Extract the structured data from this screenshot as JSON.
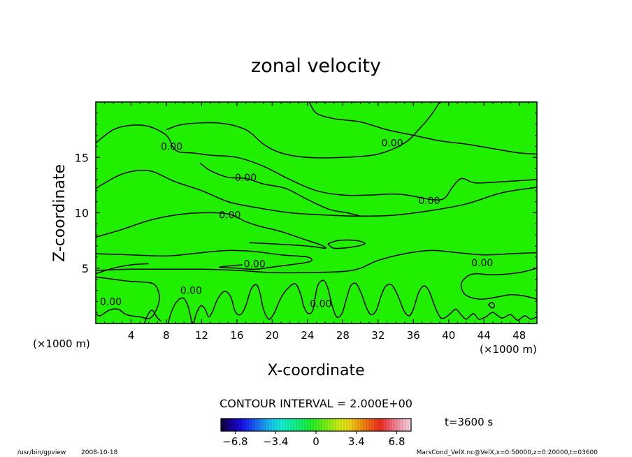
{
  "chart_data": {
    "type": "contour",
    "title": "zonal velocity",
    "xlabel": "X-coordinate",
    "ylabel": "Z-coordinate",
    "x_unit_left": "(×1000 m)",
    "x_unit_right": "(×1000 m)",
    "xlim": [
      0,
      50
    ],
    "ylim": [
      0,
      20
    ],
    "x_ticks": [
      4,
      8,
      12,
      16,
      20,
      24,
      28,
      32,
      36,
      40,
      44,
      48
    ],
    "y_ticks": [
      5,
      10,
      15
    ],
    "contour_interval_label": "CONTOUR INTERVAL = 2.000E+00",
    "time_label": "t=3600 s",
    "fill_color": "#20f000",
    "contour_color": "#000000",
    "contour_labels": [
      {
        "text": "0.00",
        "x": 8.6,
        "z": 16.0
      },
      {
        "text": "0.00",
        "x": 17.0,
        "z": 13.2
      },
      {
        "text": "0.00",
        "x": 33.6,
        "z": 16.3
      },
      {
        "text": "0.00",
        "x": 37.8,
        "z": 11.1
      },
      {
        "text": "0.00",
        "x": 15.2,
        "z": 9.8
      },
      {
        "text": "0.00",
        "x": 18.0,
        "z": 5.4
      },
      {
        "text": "0.00",
        "x": 43.8,
        "z": 5.5
      },
      {
        "text": "0.00",
        "x": 1.7,
        "z": 2.0
      },
      {
        "text": "0.00",
        "x": 10.8,
        "z": 3.0
      },
      {
        "text": "0.00",
        "x": 25.5,
        "z": 1.8
      }
    ],
    "contours": [
      [
        [
          0,
          12.2
        ],
        [
          3,
          13.5
        ],
        [
          6,
          13.8
        ],
        [
          9,
          12.8
        ],
        [
          12,
          12.0
        ],
        [
          15,
          11.0
        ],
        [
          18,
          10.5
        ],
        [
          22,
          10.0
        ],
        [
          26,
          9.8
        ],
        [
          30,
          9.7
        ],
        [
          34,
          9.8
        ],
        [
          38,
          10.2
        ],
        [
          42,
          10.8
        ],
        [
          46,
          11.8
        ],
        [
          50,
          12.3
        ]
      ],
      [
        [
          0,
          16.3
        ],
        [
          2,
          17.5
        ],
        [
          4,
          17.9
        ],
        [
          6,
          17.8
        ],
        [
          8,
          17.0
        ],
        [
          8.7,
          16.0
        ],
        [
          9.4,
          15.5
        ],
        [
          11,
          15.4
        ],
        [
          13,
          15.2
        ],
        [
          16,
          15.0
        ],
        [
          19,
          14.2
        ],
        [
          22,
          13.0
        ],
        [
          25,
          12.0
        ],
        [
          28,
          11.6
        ],
        [
          31,
          11.6
        ],
        [
          34,
          11.7
        ],
        [
          36,
          11.5
        ],
        [
          38,
          11.2
        ],
        [
          39.5,
          11.3
        ],
        [
          40.5,
          12.4
        ],
        [
          41.5,
          13.1
        ],
        [
          43,
          12.7
        ],
        [
          46,
          12.8
        ],
        [
          50,
          13.0
        ]
      ],
      [
        [
          8,
          17.5
        ],
        [
          10,
          18.0
        ],
        [
          14,
          18.1
        ],
        [
          17,
          17.5
        ],
        [
          19,
          16.2
        ],
        [
          21,
          15.4
        ],
        [
          24,
          15.0
        ],
        [
          28,
          15.0
        ],
        [
          32,
          15.3
        ],
        [
          35,
          16.3
        ],
        [
          36.7,
          17.6
        ],
        [
          37.8,
          18.6
        ],
        [
          38.5,
          19.4
        ],
        [
          39,
          20
        ]
      ],
      [
        [
          24.2,
          20
        ],
        [
          25,
          19
        ],
        [
          27,
          18.5
        ],
        [
          30,
          18.2
        ],
        [
          33,
          17.5
        ],
        [
          36,
          17.0
        ],
        [
          39,
          16.5
        ],
        [
          42,
          16.2
        ],
        [
          45,
          15.8
        ],
        [
          48,
          15.4
        ],
        [
          50,
          15.3
        ]
      ],
      [
        [
          11.8,
          14.5
        ],
        [
          13,
          13.8
        ],
        [
          15,
          13.2
        ],
        [
          17,
          13.1
        ],
        [
          19,
          12.6
        ],
        [
          21.5,
          12.2
        ],
        [
          24,
          11.2
        ],
        [
          26.5,
          10.3
        ],
        [
          28.5,
          10.0
        ],
        [
          30,
          9.7
        ]
      ],
      [
        [
          0,
          7.8
        ],
        [
          3,
          8.5
        ],
        [
          6,
          9.3
        ],
        [
          9,
          9.8
        ],
        [
          12,
          10.0
        ],
        [
          15,
          9.9
        ],
        [
          17,
          9.2
        ],
        [
          18.5,
          8.8
        ],
        [
          21,
          8.3
        ],
        [
          24,
          7.5
        ],
        [
          25.5,
          7.1
        ],
        [
          26,
          6.8
        ],
        [
          24,
          7.0
        ],
        [
          20,
          7.2
        ],
        [
          17.4,
          7.3
        ]
      ],
      [
        [
          26.3,
          7.2
        ],
        [
          27.5,
          7.5
        ],
        [
          29.5,
          7.5
        ],
        [
          30.5,
          7.2
        ],
        [
          29,
          6.9
        ],
        [
          27,
          6.8
        ],
        [
          26.3,
          7.2
        ]
      ],
      [
        [
          0,
          6.3
        ],
        [
          4,
          6.2
        ],
        [
          8,
          6.1
        ],
        [
          12,
          6.4
        ],
        [
          15,
          6.6
        ],
        [
          18,
          6.5
        ],
        [
          21,
          6.2
        ],
        [
          24,
          6.0
        ],
        [
          24.3,
          5.6
        ],
        [
          22,
          5.3
        ],
        [
          20,
          5.1
        ],
        [
          18,
          4.9
        ],
        [
          16,
          5.0
        ],
        [
          14,
          5.1
        ],
        [
          16.6,
          5.3
        ]
      ],
      [
        [
          0,
          4.8
        ],
        [
          4,
          4.9
        ],
        [
          8,
          4.9
        ],
        [
          12,
          4.9
        ],
        [
          16,
          4.8
        ],
        [
          20,
          4.6
        ],
        [
          24,
          4.6
        ],
        [
          28,
          4.7
        ],
        [
          30,
          5.0
        ],
        [
          32,
          5.7
        ],
        [
          35,
          6.3
        ],
        [
          38,
          6.6
        ],
        [
          41,
          6.4
        ],
        [
          44,
          6.2
        ],
        [
          47,
          6.3
        ],
        [
          50,
          6.4
        ]
      ],
      [
        [
          0,
          4.2
        ],
        [
          2,
          4.0
        ],
        [
          4,
          3.8
        ],
        [
          6,
          3.7
        ],
        [
          6.8,
          3.4
        ],
        [
          7.2,
          2.5
        ],
        [
          7.0,
          1.5
        ],
        [
          6.2,
          0.5
        ],
        [
          5.0,
          0.6
        ],
        [
          3.5,
          0.8
        ],
        [
          2.5,
          1.3
        ],
        [
          1.5,
          1.2
        ],
        [
          0.5,
          0.7
        ],
        [
          0,
          0.9
        ]
      ],
      [
        [
          50,
          5.0
        ],
        [
          48,
          4.6
        ],
        [
          45,
          4.4
        ],
        [
          43,
          4.5
        ],
        [
          42,
          4.2
        ],
        [
          41.4,
          3.5
        ],
        [
          41.9,
          2.6
        ],
        [
          43.5,
          2.2
        ],
        [
          45.5,
          2.4
        ],
        [
          47,
          2.6
        ],
        [
          48.5,
          2.5
        ],
        [
          50,
          2.2
        ]
      ],
      [
        [
          0,
          4.5
        ],
        [
          2,
          5.0
        ],
        [
          4,
          5.3
        ],
        [
          6,
          5.4
        ]
      ],
      [
        [
          44.5,
          1.7
        ],
        [
          44.9,
          1.9
        ],
        [
          45.2,
          1.6
        ],
        [
          44.9,
          1.4
        ],
        [
          44.5,
          1.7
        ]
      ],
      [
        [
          11.1,
          0
        ],
        [
          11.4,
          0.9
        ],
        [
          11.9,
          1.6
        ],
        [
          12.4,
          1.3
        ],
        [
          12.8,
          0.6
        ],
        [
          13.3,
          1.2
        ],
        [
          13.8,
          2.2
        ],
        [
          14.6,
          2.9
        ],
        [
          15.3,
          2.4
        ],
        [
          15.8,
          1.1
        ],
        [
          16.4,
          0.8
        ],
        [
          17.0,
          1.6
        ],
        [
          17.6,
          3.1
        ],
        [
          18.2,
          3.5
        ],
        [
          18.6,
          2.8
        ],
        [
          19.0,
          1.3
        ],
        [
          19.6,
          0.4
        ],
        [
          20.2,
          0.9
        ],
        [
          20.8,
          2.0
        ],
        [
          21.2,
          2.6
        ],
        [
          21.8,
          3.2
        ],
        [
          22.6,
          3.6
        ],
        [
          23.2,
          2.7
        ],
        [
          23.6,
          1.5
        ],
        [
          24.1,
          0.9
        ],
        [
          24.6,
          1.2
        ],
        [
          24.9,
          2.5
        ],
        [
          25.2,
          3.5
        ],
        [
          25.8,
          3.9
        ],
        [
          26.3,
          3.2
        ],
        [
          26.8,
          1.6
        ],
        [
          27.3,
          0.6
        ],
        [
          27.9,
          0.9
        ],
        [
          28.4,
          2.2
        ],
        [
          28.9,
          3.4
        ],
        [
          29.5,
          3.6
        ],
        [
          30.1,
          2.7
        ],
        [
          30.7,
          1.4
        ],
        [
          31.2,
          0.8
        ],
        [
          31.8,
          1.2
        ],
        [
          32.3,
          2.4
        ],
        [
          32.8,
          3.3
        ],
        [
          33.5,
          3.5
        ],
        [
          34.2,
          2.6
        ],
        [
          34.9,
          1.2
        ],
        [
          35.5,
          0.7
        ],
        [
          36.0,
          1.3
        ],
        [
          36.6,
          2.8
        ],
        [
          37.2,
          3.4
        ],
        [
          37.8,
          2.9
        ],
        [
          38.4,
          1.6
        ],
        [
          39.0,
          0.6
        ],
        [
          39.5,
          0.5
        ],
        [
          40.2,
          0.9
        ],
        [
          40.8,
          1.3
        ],
        [
          41.4,
          0.8
        ],
        [
          42.0,
          0.4
        ],
        [
          42.8,
          0.9
        ],
        [
          43.4,
          0.4
        ],
        [
          44.2,
          0.6
        ],
        [
          45.0,
          1.0
        ],
        [
          46.0,
          0.5
        ],
        [
          47.0,
          0.8
        ],
        [
          47.8,
          0.3
        ],
        [
          48.6,
          0.7
        ],
        [
          49.3,
          0.4
        ],
        [
          50,
          0.6
        ]
      ],
      [
        [
          5.5,
          0
        ],
        [
          5.9,
          0.8
        ],
        [
          6.4,
          1.2
        ],
        [
          6.9,
          0.6
        ],
        [
          7.4,
          0.2
        ]
      ],
      [
        [
          8.2,
          0
        ],
        [
          8.6,
          1.1
        ],
        [
          9.2,
          2.0
        ],
        [
          9.9,
          2.3
        ],
        [
          10.4,
          1.7
        ],
        [
          10.7,
          0.8
        ],
        [
          10.9,
          0
        ]
      ]
    ],
    "colorbar": {
      "ticks": [
        "−6.8",
        "−3.4",
        "0",
        "3.4",
        "6.8"
      ],
      "range": [
        -8.0,
        8.0
      ],
      "colors": [
        "#110044",
        "#1800a0",
        "#1a10e8",
        "#1a4cf4",
        "#1a8af0",
        "#18c8f0",
        "#16f0d8",
        "#14f0a0",
        "#14f068",
        "#20f02c",
        "#5af018",
        "#98f018",
        "#d6ee16",
        "#f0d014",
        "#f09814",
        "#f06016",
        "#f02c20",
        "#f06070",
        "#f0a0b0",
        "#f8d0d8"
      ]
    }
  },
  "footer": {
    "left_path": "/usr/bin/gpview",
    "left_date": "2008-10-18",
    "right_source": "MarsCond_VelX.nc@VelX,x=0:50000,z=0:20000,t=03600"
  }
}
